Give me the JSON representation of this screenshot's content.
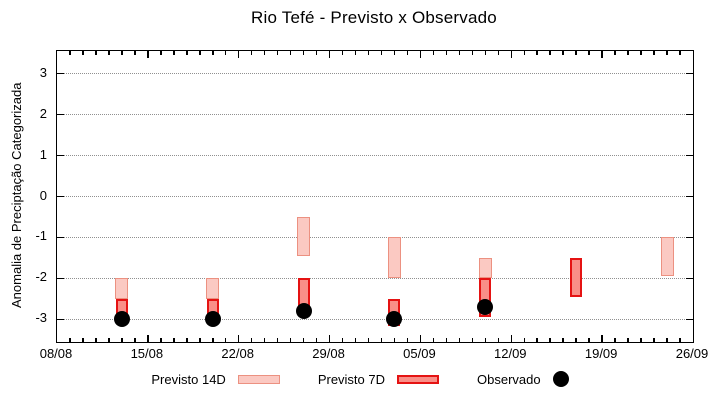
{
  "chart_data": {
    "type": "bar",
    "subtype": "range-bars-with-scatter",
    "title": "Rio Tefé - Previsto x Observado",
    "ylabel": "Anomalia de Preciptação Categorizada",
    "xlabel": "",
    "ylim": [
      -3.55,
      3.55
    ],
    "yticks": [
      3,
      2,
      1,
      0,
      -1,
      -2,
      -3
    ],
    "xlim_days": [
      0,
      49
    ],
    "xticks": [
      {
        "day": 0,
        "label": "08/08"
      },
      {
        "day": 7,
        "label": "15/08"
      },
      {
        "day": 14,
        "label": "22/08"
      },
      {
        "day": 21,
        "label": "29/08"
      },
      {
        "day": 28,
        "label": "05/09"
      },
      {
        "day": 35,
        "label": "12/09"
      },
      {
        "day": 42,
        "label": "19/09"
      },
      {
        "day": 49,
        "label": "26/09"
      }
    ],
    "minor_xtick_interval_days": 1,
    "grid": "horizontal dotted gray lines at integer y values",
    "legend": {
      "position": "bottom-center",
      "previsto14": "Previsto 14D",
      "previsto7": "Previsto 7D",
      "observado": "Observado"
    },
    "colors": {
      "previsto14_fill": "#fbc9c2",
      "previsto14_border": "#ec9181",
      "previsto7_fill": "#f98f88",
      "previsto7_border": "#e51313",
      "observado": "#000000",
      "grid": "#909090",
      "frame": "#000000"
    },
    "series": [
      {
        "name": "Previsto 14D",
        "type": "range-bar",
        "data": [
          {
            "day": 5,
            "date": "13/08",
            "from": -2.0,
            "to": -2.5
          },
          {
            "day": 12,
            "date": "20/08",
            "from": -2.0,
            "to": -2.5
          },
          {
            "day": 19,
            "date": "27/08",
            "from": -0.5,
            "to": -1.45
          },
          {
            "day": 26,
            "date": "03/09",
            "from": -1.0,
            "to": -2.0
          },
          {
            "day": 33,
            "date": "10/09",
            "from": -1.5,
            "to": -2.0
          },
          {
            "day": 47,
            "date": "24/09",
            "from": -1.0,
            "to": -1.95
          }
        ]
      },
      {
        "name": "Previsto 7D",
        "type": "range-bar",
        "data": [
          {
            "day": 5,
            "date": "13/08",
            "from": -2.5,
            "to": -3.05
          },
          {
            "day": 12,
            "date": "20/08",
            "from": -2.5,
            "to": -3.0
          },
          {
            "day": 19,
            "date": "27/08",
            "from": -2.0,
            "to": -2.8
          },
          {
            "day": 26,
            "date": "03/09",
            "from": -2.5,
            "to": -3.15
          },
          {
            "day": 33,
            "date": "10/09",
            "from": -2.0,
            "to": -2.95
          },
          {
            "day": 40,
            "date": "17/09",
            "from": -1.5,
            "to": -2.45
          }
        ]
      },
      {
        "name": "Observado",
        "type": "scatter",
        "data": [
          {
            "day": 5,
            "date": "13/08",
            "value": -3.0
          },
          {
            "day": 12,
            "date": "20/08",
            "value": -3.0
          },
          {
            "day": 19,
            "date": "27/08",
            "value": -2.8
          },
          {
            "day": 26,
            "date": "03/09",
            "value": -3.0
          },
          {
            "day": 33,
            "date": "10/09",
            "value": -2.7
          }
        ]
      }
    ]
  }
}
